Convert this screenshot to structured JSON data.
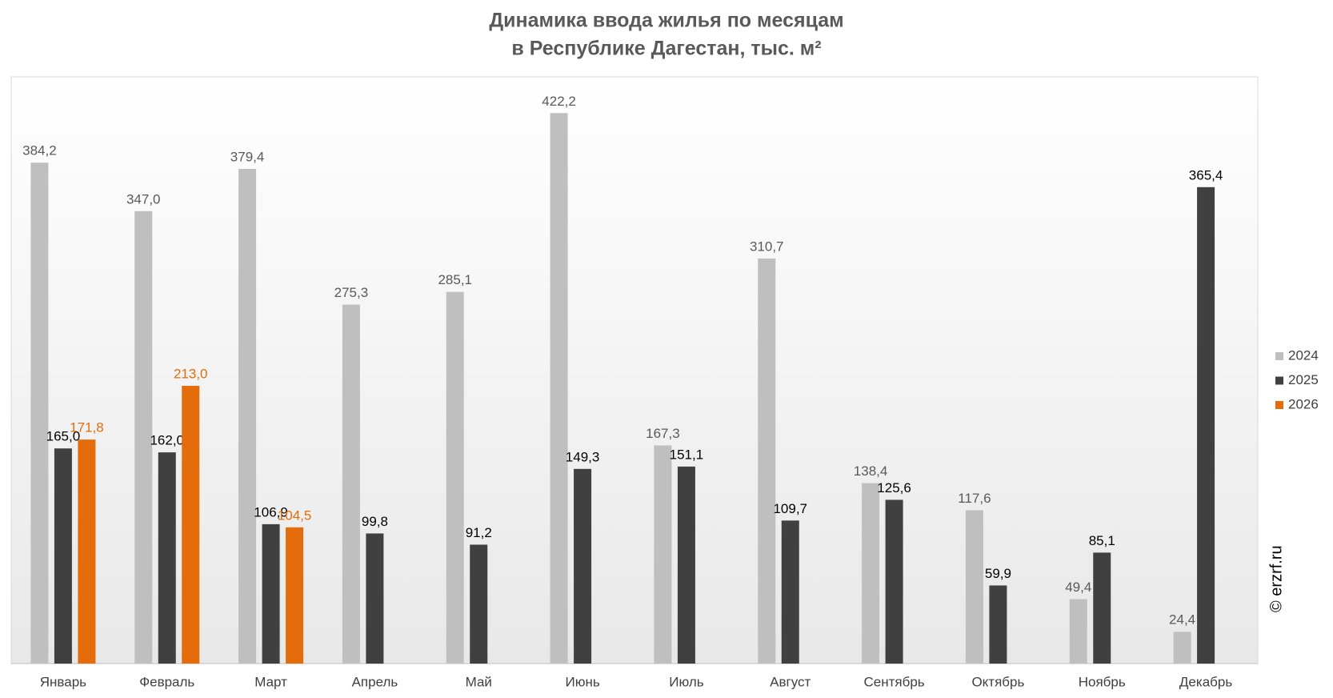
{
  "chart_data": {
    "type": "bar",
    "title": "Динамика ввода жилья по месяцам",
    "subtitle": "в Республике Дагестан, тыс. м²",
    "watermark": "© erzrf.ru",
    "categories": [
      "Январь",
      "Февраль",
      "Март",
      "Апрель",
      "Май",
      "Июнь",
      "Июль",
      "Август",
      "Сентябрь",
      "Октябрь",
      "Ноябрь",
      "Декабрь"
    ],
    "series": [
      {
        "name": "2024",
        "color": "#bfbfbf",
        "label_color": "#595959",
        "values": [
          384.2,
          347.0,
          379.4,
          275.3,
          285.1,
          422.2,
          167.3,
          310.7,
          138.4,
          117.6,
          49.4,
          24.4
        ],
        "value_labels": [
          "384,2",
          "347,0",
          "379,4",
          "275,3",
          "285,1",
          "422,2",
          "167,3",
          "310,7",
          "138,4",
          "117,6",
          "49,4",
          "24,4"
        ]
      },
      {
        "name": "2025",
        "color": "#404040",
        "label_color": "#000000",
        "values": [
          165.0,
          162.0,
          106.9,
          99.8,
          91.2,
          149.3,
          151.1,
          109.7,
          125.6,
          59.9,
          85.1,
          365.4
        ],
        "value_labels": [
          "165,0",
          "162,0",
          "106,9",
          "99,8",
          "91,2",
          "149,3",
          "151,1",
          "109,7",
          "125,6",
          "59,9",
          "85,1",
          "365,4"
        ]
      },
      {
        "name": "2026",
        "color": "#e46c0a",
        "label_color": "#e46c0a",
        "values": [
          171.8,
          213.0,
          104.5,
          null,
          null,
          null,
          null,
          null,
          null,
          null,
          null,
          null
        ],
        "value_labels": [
          "171,8",
          "213,0",
          "104,5",
          null,
          null,
          null,
          null,
          null,
          null,
          null,
          null,
          null
        ]
      }
    ],
    "ylim": [
      0,
      450
    ],
    "legend": "right"
  }
}
